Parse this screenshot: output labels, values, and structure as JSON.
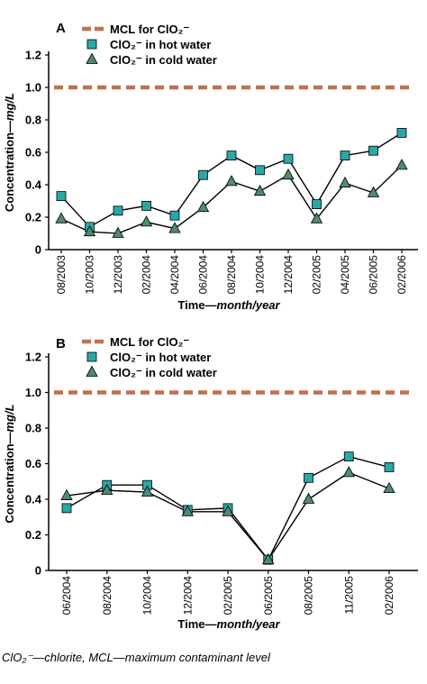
{
  "colors": {
    "mcl": "#c0704f",
    "hot_fill": "#2aa7a7",
    "cold_fill": "#4f8a74",
    "line": "#000000"
  },
  "chart_data": [
    {
      "panel_label": "A",
      "type": "line",
      "ylabel_main": "Concentration—",
      "ylabel_unit": "mg/L",
      "xlabel_main": "Time—",
      "xlabel_unit": "month/year",
      "ylim": [
        0,
        1.2
      ],
      "yticks": [
        "0",
        "0.2",
        "0.4",
        "0.6",
        "0.8",
        "1.0",
        "1.2"
      ],
      "categories": [
        "08/2003",
        "10/2003",
        "12/2003",
        "02/2004",
        "04/2004",
        "06/2004",
        "08/2004",
        "10/2004",
        "12/2004",
        "02/2005",
        "04/2005",
        "06/2005",
        "02/2006"
      ],
      "mcl": 1.0,
      "legend": [
        {
          "key": "mcl",
          "label": "MCL for ClO₂⁻"
        },
        {
          "key": "hot",
          "label": "ClO₂⁻ in hot water"
        },
        {
          "key": "cold",
          "label": "ClO₂⁻ in cold water"
        }
      ],
      "series": [
        {
          "name": "ClO₂⁻ in hot water",
          "marker": "square",
          "values": [
            0.33,
            0.14,
            0.24,
            0.27,
            0.21,
            0.46,
            0.58,
            0.49,
            0.56,
            0.28,
            0.58,
            0.61,
            0.72
          ]
        },
        {
          "name": "ClO₂⁻ in cold water",
          "marker": "triangle",
          "values": [
            0.19,
            0.11,
            0.1,
            0.17,
            0.13,
            0.26,
            0.42,
            0.36,
            0.46,
            0.19,
            0.41,
            0.35,
            0.52
          ]
        }
      ]
    },
    {
      "panel_label": "B",
      "type": "line",
      "ylabel_main": "Concentration—",
      "ylabel_unit": "mg/L",
      "xlabel_main": "Time—",
      "xlabel_unit": "month/year",
      "ylim": [
        0,
        1.2
      ],
      "yticks": [
        "0",
        "0.2",
        "0.4",
        "0.6",
        "0.8",
        "1.0",
        "1.2"
      ],
      "categories": [
        "06/2004",
        "08/2004",
        "10/2004",
        "12/2004",
        "02/2005",
        "06/2005",
        "08/2005",
        "11/2005",
        "02/2006"
      ],
      "mcl": 1.0,
      "legend": [
        {
          "key": "mcl",
          "label": "MCL for ClO₂⁻"
        },
        {
          "key": "hot",
          "label": "ClO₂⁻ in hot water"
        },
        {
          "key": "cold",
          "label": "ClO₂⁻ in cold water"
        }
      ],
      "series": [
        {
          "name": "ClO₂⁻ in hot water",
          "marker": "square",
          "values": [
            0.35,
            0.48,
            0.48,
            0.34,
            0.35,
            0.06,
            0.52,
            0.64,
            0.58
          ]
        },
        {
          "name": "ClO₂⁻ in cold water",
          "marker": "triangle",
          "values": [
            0.42,
            0.45,
            0.44,
            0.33,
            0.33,
            0.06,
            0.4,
            0.55,
            0.46
          ]
        }
      ]
    }
  ],
  "caption": "ClO₂⁻—chlorite, MCL—maximum contaminant level"
}
